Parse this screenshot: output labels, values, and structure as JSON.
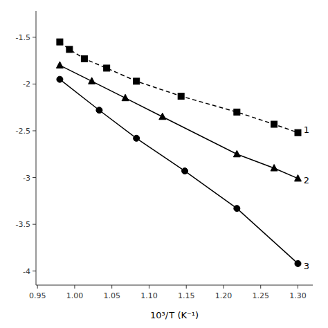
{
  "chart_data": {
    "type": "line",
    "title": "",
    "xlabel": "10³/ T (K⁻¹)",
    "xlim": [
      0.948,
      1.32
    ],
    "ylim": [
      -4.15,
      -1.22
    ],
    "xticks": [
      0.95,
      {
        "value": 1.0,
        "label": "1.00"
      },
      1.05,
      {
        "value": 1.1,
        "label": "1.10"
      },
      1.15,
      {
        "value": 1.2,
        "label": "1.20"
      },
      1.25,
      {
        "value": 1.3,
        "label": "1.30"
      }
    ],
    "yticks": [
      -4,
      -3.5,
      -3,
      -2.5,
      -2,
      -1.5
    ],
    "grid": false,
    "series": [
      {
        "x": [
          0.98,
          0.993,
          1.013,
          1.043,
          1.083,
          1.143,
          1.218,
          1.268,
          1.3
        ],
        "values": [
          -1.55,
          -1.63,
          -1.73,
          -1.83,
          -1.97,
          -2.13,
          -2.3,
          -2.43,
          -2.52
        ],
        "marker": "square",
        "line_style": "dashed",
        "color": "#000000"
      },
      {
        "x": [
          0.98,
          1.023,
          1.068,
          1.118,
          1.218,
          1.268,
          1.3
        ],
        "values": [
          -1.8,
          -1.97,
          -2.15,
          -2.35,
          -2.75,
          -2.9,
          -3.01
        ],
        "marker": "triangle",
        "line_style": "solid",
        "color": "#000000"
      },
      {
        "x": [
          0.98,
          1.033,
          1.083,
          1.148,
          1.218,
          1.3
        ],
        "values": [
          -1.95,
          -2.28,
          -2.58,
          -2.93,
          -3.33,
          -3.92
        ],
        "marker": "circle",
        "line_style": "solid",
        "color": "#000000"
      }
    ],
    "annotations": [
      {
        "text": "1",
        "x": 1.302,
        "y": -2.49
      },
      {
        "text": "2",
        "x": 1.302,
        "y": -3.03
      },
      {
        "text": "3",
        "x": 1.302,
        "y": -3.95
      }
    ]
  }
}
